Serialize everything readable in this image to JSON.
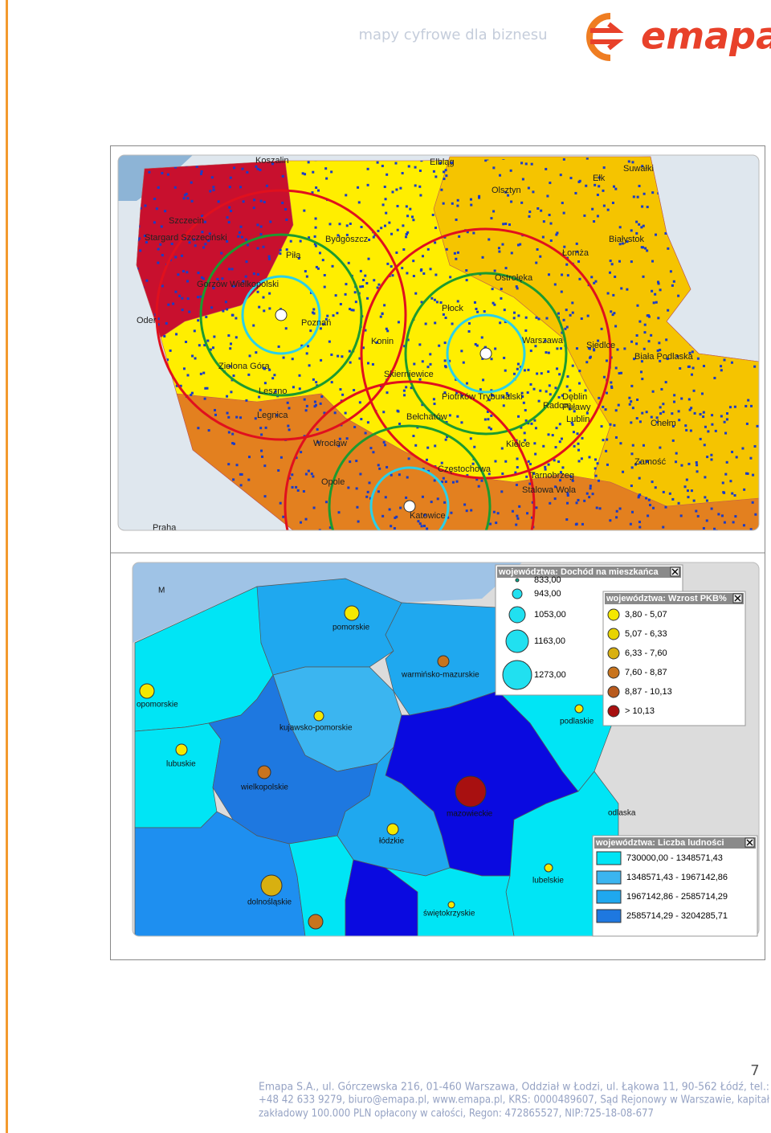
{
  "header": {
    "tagline": "mapy cyfrowe dla biznesu",
    "logo": "emapa"
  },
  "map_top": {
    "labels": [
      "Koszalin",
      "Elbląg",
      "Olsztyn",
      "Suwałki",
      "Ełk",
      "Szczecin",
      "Stargard Szczeciński",
      "Bydgoszcz",
      "Białystok",
      "Łomża",
      "Piła",
      "Ostrołęka",
      "Gorzów Wielkopolski",
      "Płock",
      "Poznań",
      "Oder",
      "Konin",
      "Warszawa",
      "Siedlce",
      "Biała Podlaska",
      "Zielona Góra",
      "Skierniewice",
      "Leszno",
      "Piotrków Trybunalski",
      "Dęblin",
      "Puławy",
      "Radom",
      "Lublin",
      "Legnica",
      "Wrocław",
      "Bełchatów",
      "Chełm",
      "Kielce",
      "Częstochowa",
      "Zamość",
      "Opole",
      "Katowice",
      "Tarnobrzeg",
      "Stalowa Wola",
      "Praha"
    ]
  },
  "map_bottom": {
    "labels": [
      "M",
      "pomorskie",
      "warmińsko-mazurskie",
      "opomorskie",
      "kujawsko-pomorskie",
      "podlaskie",
      "lubuskie",
      "wielkopolskie",
      "mazowieckie",
      "łódzkie",
      "odlaska",
      "lubelskie",
      "dolnośląskie",
      "świętokrzyskie"
    ],
    "legends": [
      {
        "title": "województwa: Dochód na mieszkańca",
        "items": [
          "833,00",
          "943,00",
          "1053,00",
          "1163,00",
          "1273,00"
        ]
      },
      {
        "title": "województwa: Wzrost PKB%",
        "items": [
          "3,80 - 5,07",
          "5,07 - 6,33",
          "6,33 - 7,60",
          "7,60 - 8,87",
          "8,87 - 10,13",
          "> 10,13"
        ]
      },
      {
        "title": "województwa: Liczba ludności",
        "items": [
          "730000,00 - 1348571,43",
          "1348571,43 - 1967142,86",
          "1967142,86 - 2585714,29",
          "2585714,29 - 3204285,71"
        ]
      }
    ]
  },
  "page_number": "7",
  "footer": [
    "Emapa S.A., ul. Górczewska 216, 01-460 Warszawa, Oddział w Łodzi, ul. Łąkowa 11, 90-562 Łódź, tel.:",
    "+48 42 633 9279, biuro@emapa.pl, www.emapa.pl, KRS: 0000489607, Sąd Rejonowy w Warszawie, kapitał",
    "zakładowy 100.000 PLN opłacony w całości, Regon: 472865527, NIP:725-18-08-677"
  ]
}
